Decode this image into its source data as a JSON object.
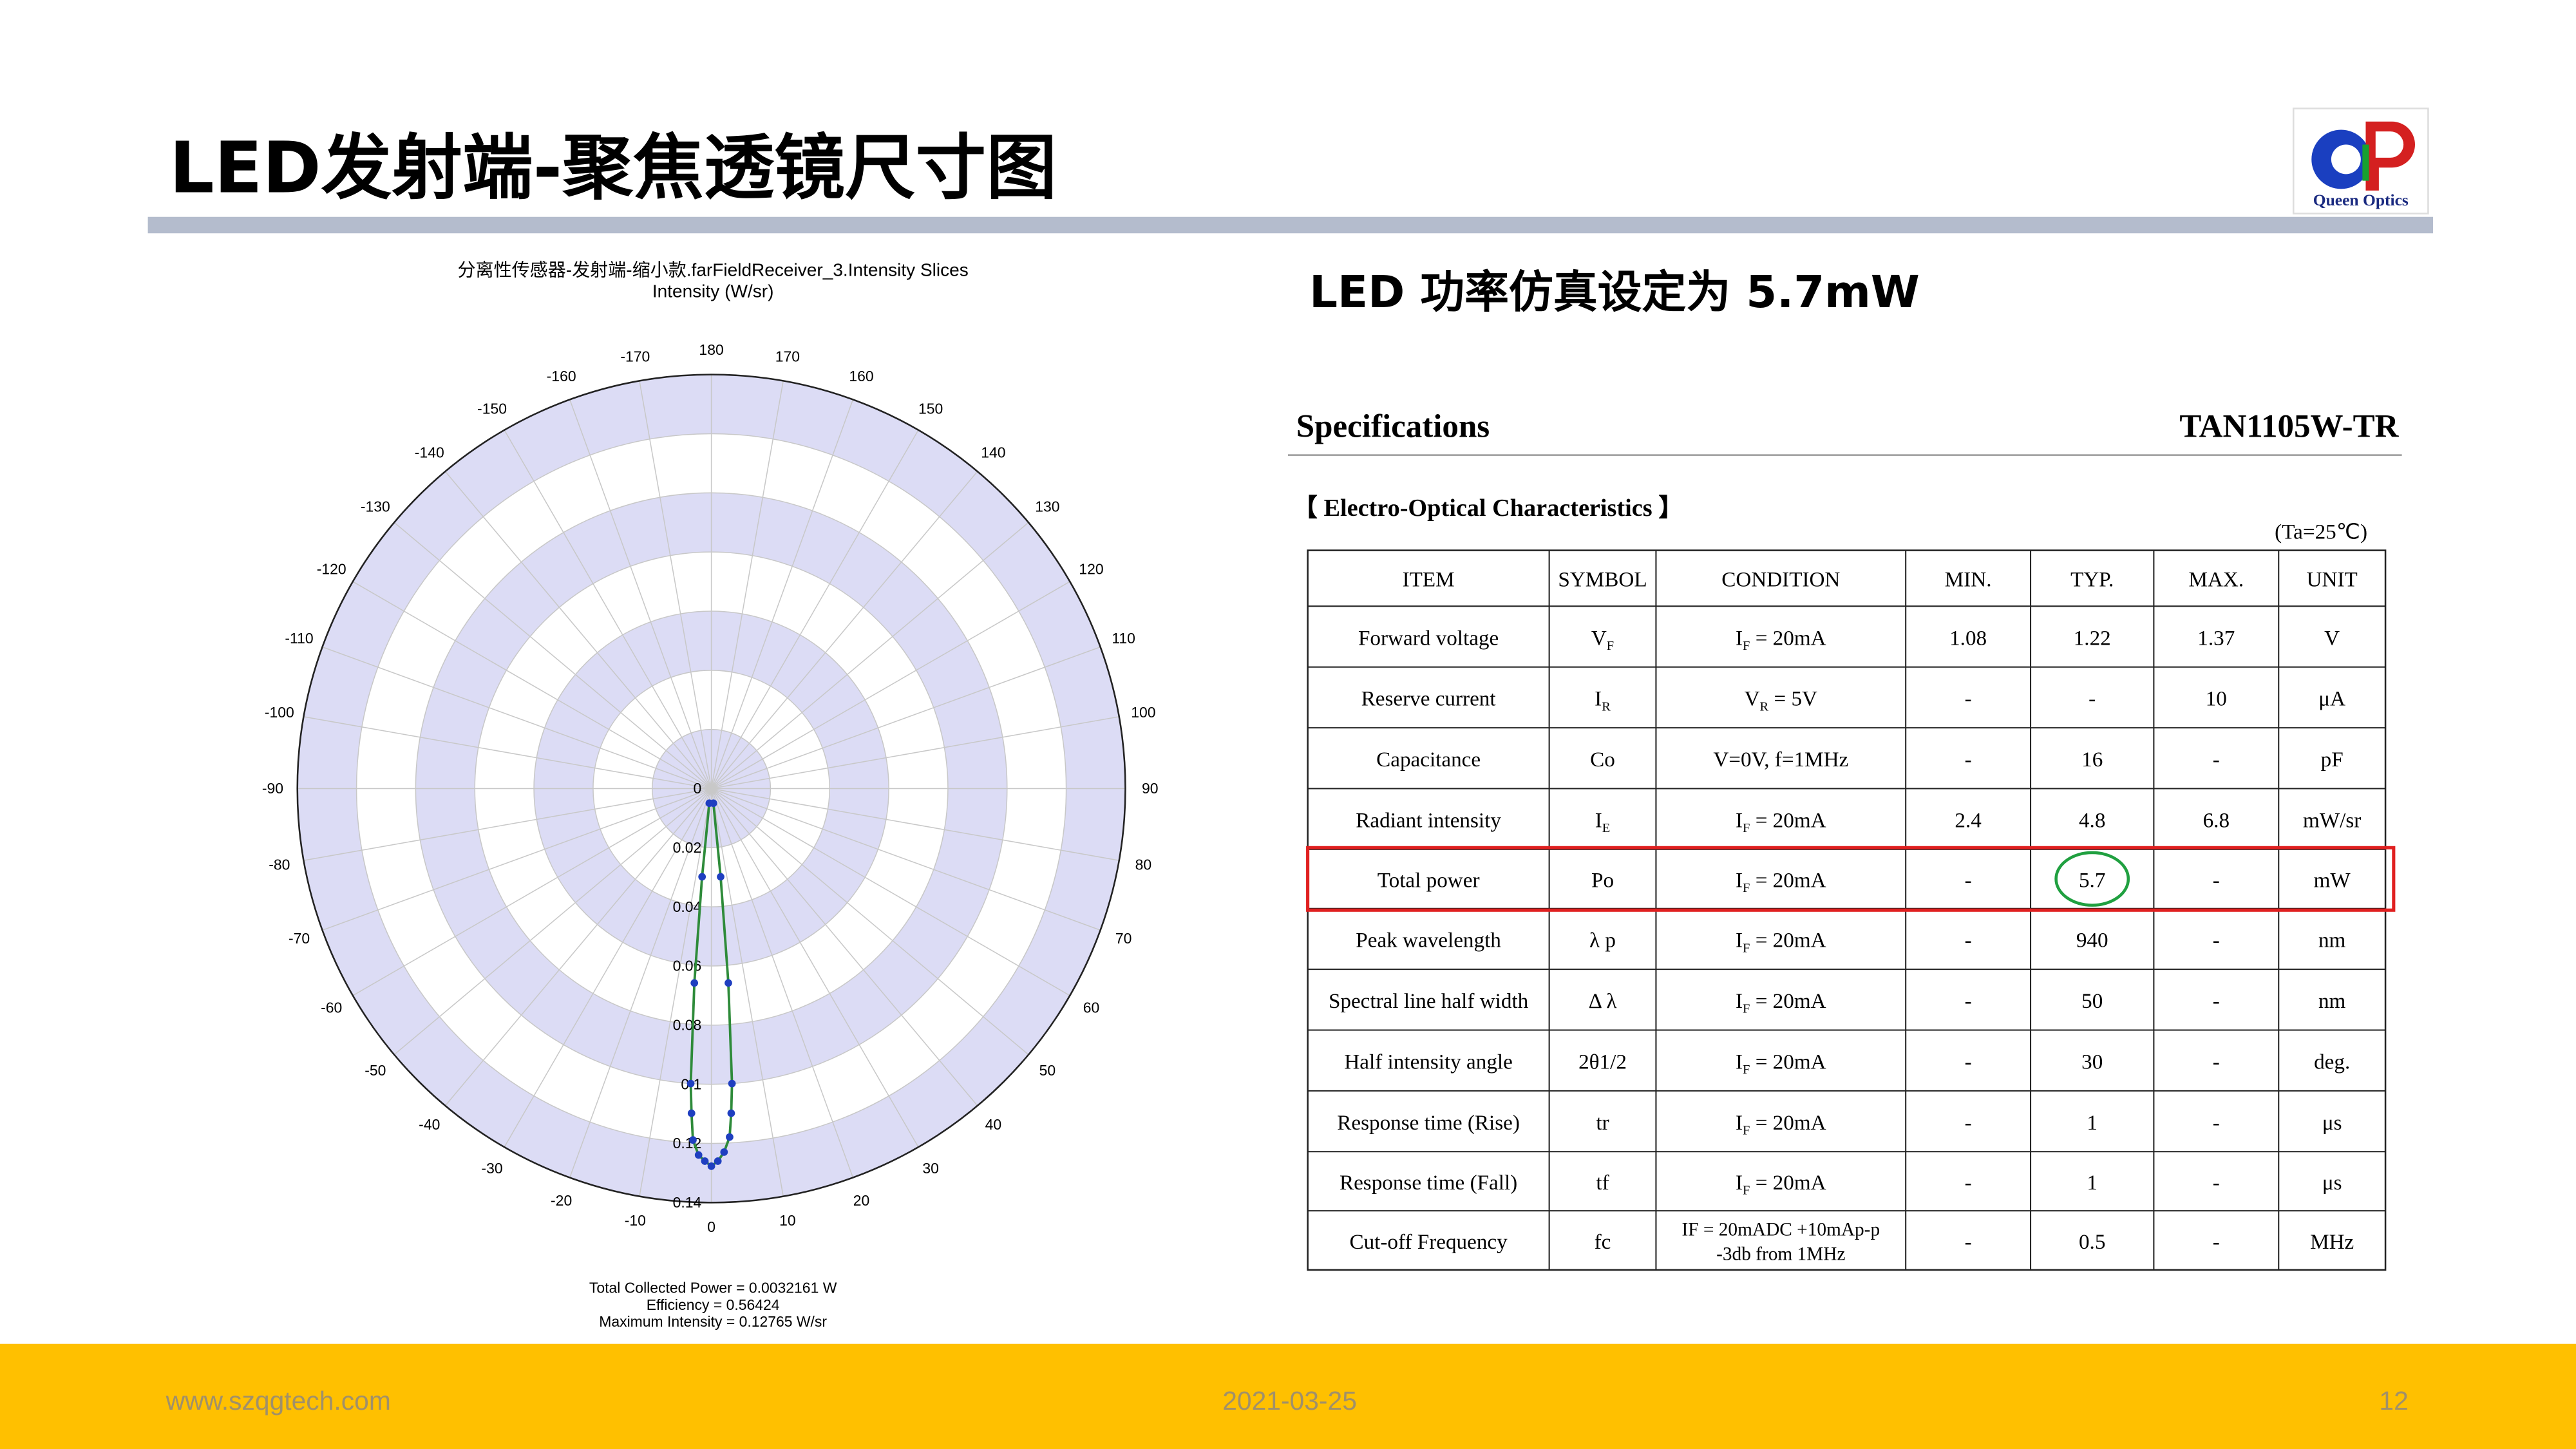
{
  "header": {
    "title": "LED发射端-聚焦透镜尺寸图",
    "logo_text": "Queen Optics"
  },
  "chart_data": {
    "type": "polar",
    "title": "分离性传感器-发射端-缩小款.farFieldReceiver_3.Intensity Slices",
    "subtitle": "Intensity (W/sr)",
    "angle_ticks": [
      -170,
      -160,
      -150,
      -140,
      -130,
      -120,
      -110,
      -100,
      -90,
      -80,
      -70,
      -60,
      -50,
      -40,
      -30,
      -20,
      -10,
      0,
      10,
      20,
      30,
      40,
      50,
      60,
      70,
      80,
      90,
      100,
      110,
      120,
      130,
      140,
      150,
      160,
      170,
      180
    ],
    "rlim": [
      0,
      0.14
    ],
    "rticks": [
      0,
      0.02,
      0.04,
      0.06,
      0.08,
      0.1,
      0.12,
      0.14
    ],
    "ring_color": "#dcdcf5",
    "series": [
      {
        "line_color": "#2e8b3a",
        "marker_color": "#1f3fc0",
        "theta": [
          -8,
          -6,
          -5,
          -4,
          -3.5,
          -3,
          -2,
          -1,
          0,
          1,
          2,
          3,
          3.5,
          4,
          5,
          6,
          8
        ],
        "values": [
          0.005,
          0.03,
          0.066,
          0.1,
          0.11,
          0.119,
          0.124,
          0.126,
          0.1277,
          0.126,
          0.123,
          0.118,
          0.11,
          0.1,
          0.066,
          0.03,
          0.005
        ]
      }
    ],
    "notes": [
      "Total Collected Power = 0.0032161  W",
      "Efficiency = 0.56424",
      "Maximum Intensity = 0.12765  W/sr"
    ]
  },
  "section_heading": "LED 功率仿真设定为 5.7mW",
  "spec": {
    "title": "Specifications",
    "part_number": "TAN1105W-TR",
    "subtitle": "【 Electro-Optical Characteristics 】",
    "condition_note": "(Ta=25℃)"
  },
  "table": {
    "header": [
      "ITEM",
      "SYMBOL",
      "CONDITION",
      "MIN.",
      "TYP.",
      "MAX.",
      "UNIT"
    ],
    "rows": [
      [
        "Forward voltage",
        {
          "base": "V",
          "sub": "F"
        },
        {
          "base": "I",
          "sub": "F",
          "tail": " = 20mA"
        },
        "1.08",
        "1.22",
        "1.37",
        "V"
      ],
      [
        "Reserve current",
        {
          "base": "I",
          "sub": "R"
        },
        {
          "base": "V",
          "sub": "R",
          "tail": " = 5V"
        },
        "-",
        "-",
        "10",
        "μA"
      ],
      [
        "Capacitance",
        "Co",
        "V=0V, f=1MHz",
        "-",
        "16",
        "-",
        "pF"
      ],
      [
        "Radiant intensity",
        {
          "base": "I",
          "sub": "E"
        },
        {
          "base": "I",
          "sub": "F",
          "tail": " = 20mA"
        },
        "2.4",
        "4.8",
        "6.8",
        "mW/sr"
      ],
      [
        "Total power",
        "Po",
        {
          "base": "I",
          "sub": "F",
          "tail": " = 20mA"
        },
        "-",
        "5.7",
        "-",
        "mW"
      ],
      [
        "Peak wavelength",
        "λ p",
        {
          "base": "I",
          "sub": "F",
          "tail": " = 20mA"
        },
        "-",
        "940",
        "-",
        "nm"
      ],
      [
        "Spectral line half width",
        "Δ λ",
        {
          "base": "I",
          "sub": "F",
          "tail": " = 20mA"
        },
        "-",
        "50",
        "-",
        "nm"
      ],
      [
        "Half intensity angle",
        "2θ1/2",
        {
          "base": "I",
          "sub": "F",
          "tail": " = 20mA"
        },
        "-",
        "30",
        "-",
        "deg."
      ],
      [
        "Response time (Rise)",
        "tr",
        {
          "base": "I",
          "sub": "F",
          "tail": " = 20mA"
        },
        "-",
        "1",
        "-",
        "μs"
      ],
      [
        "Response time (Fall)",
        "tf",
        {
          "base": "I",
          "sub": "F",
          "tail": " = 20mA"
        },
        "-",
        "1",
        "-",
        "μs"
      ],
      [
        "Cut-off Frequency",
        "fc",
        [
          "IF = 20mADC +10mAp-p",
          "-3db from 1MHz"
        ],
        "-",
        "0.5",
        "-",
        "MHz"
      ]
    ],
    "highlight_row": 4,
    "highlight_color": "#e02020",
    "circle_color": "#20a040"
  },
  "footer": {
    "website": "www.szqgtech.com",
    "date": "2021-03-25",
    "page": "12"
  }
}
